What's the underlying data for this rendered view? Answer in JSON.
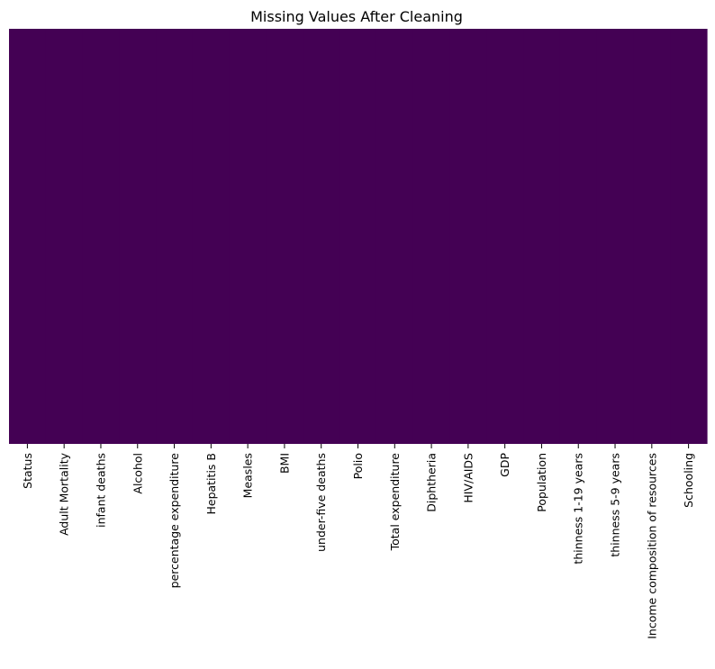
{
  "chart_data": {
    "type": "heatmap",
    "title": "Missing Values After Cleaning",
    "xlabel": "",
    "ylabel": "",
    "categories": [
      "Status",
      "Adult Mortality",
      "infant deaths",
      "Alcohol",
      "percentage expenditure",
      "Hepatitis B",
      "Measles",
      "BMI",
      "under-five deaths",
      "Polio",
      "Total expenditure",
      "Diphtheria",
      "HIV/AIDS",
      "GDP",
      "Population",
      "thinness  1-19 years",
      "thinness 5-9 years",
      "Income composition of resources",
      "Schooling"
    ],
    "missing_fraction": [
      0,
      0,
      0,
      0,
      0,
      0,
      0,
      0,
      0,
      0,
      0,
      0,
      0,
      0,
      0,
      0,
      0,
      0,
      0
    ],
    "colorbar": false,
    "grid": false,
    "colors": {
      "not_missing": "#440154",
      "missing": "#fde725"
    }
  }
}
